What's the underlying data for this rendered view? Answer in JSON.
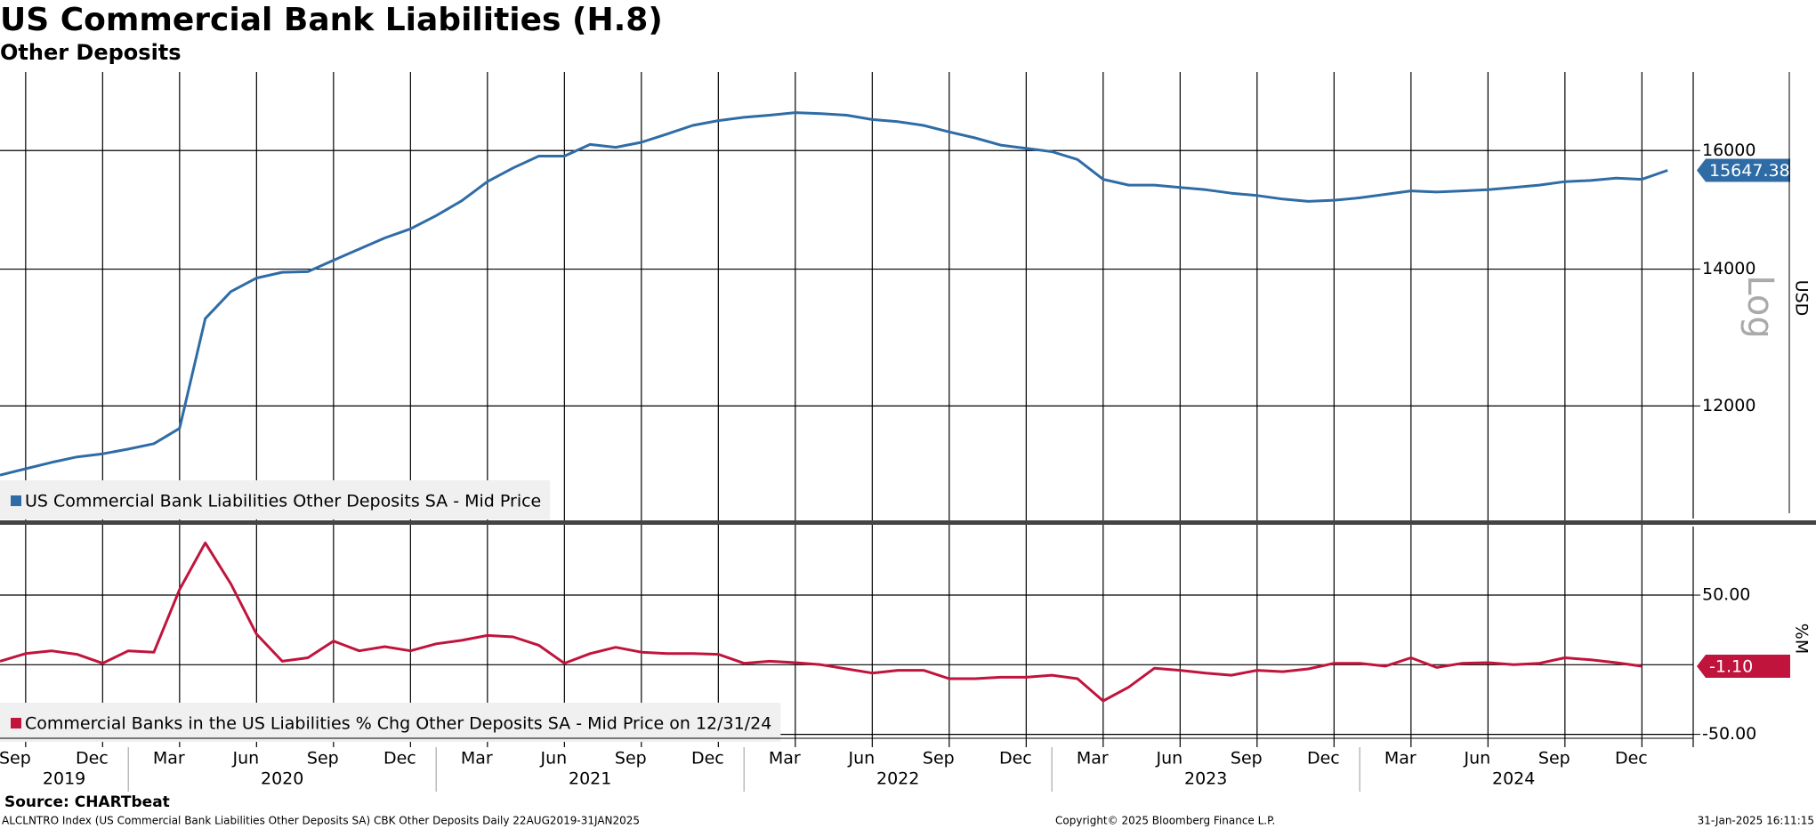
{
  "title": "US Commercial Bank Liabilities (H.8)",
  "subtitle": "Other Deposits",
  "footer": {
    "source": "Source: CHARTbeat",
    "description": "ALCLNTRO Index (US Commercial Bank Liabilities Other Deposits SA) CBK Other Deposits  Daily 22AUG2019-31JAN2025",
    "copyright": "Copyright© 2025 Bloomberg Finance L.P.",
    "timestamp": "31-Jan-2025 16:11:15"
  },
  "chart_data": [
    {
      "type": "line",
      "y_label": "USD",
      "scale_label": "Log",
      "log_scale": true,
      "grid": true,
      "legend": "bottom-left",
      "xlim": [
        "2019-08",
        "2025-02"
      ],
      "ylim": [
        10570,
        17480
      ],
      "yticks": [
        12000,
        14000,
        16000
      ],
      "x": [
        "2019-08",
        "2019-09",
        "2019-10",
        "2019-11",
        "2019-12",
        "2020-01",
        "2020-02",
        "2020-03",
        "2020-04",
        "2020-05",
        "2020-06",
        "2020-07",
        "2020-08",
        "2020-09",
        "2020-10",
        "2020-11",
        "2020-12",
        "2021-01",
        "2021-02",
        "2021-03",
        "2021-04",
        "2021-05",
        "2021-06",
        "2021-07",
        "2021-08",
        "2021-09",
        "2021-10",
        "2021-11",
        "2021-12",
        "2022-01",
        "2022-02",
        "2022-03",
        "2022-04",
        "2022-05",
        "2022-06",
        "2022-07",
        "2022-08",
        "2022-09",
        "2022-10",
        "2022-11",
        "2022-12",
        "2023-01",
        "2023-02",
        "2023-03",
        "2023-04",
        "2023-05",
        "2023-06",
        "2023-07",
        "2023-08",
        "2023-09",
        "2023-10",
        "2023-11",
        "2023-12",
        "2024-01",
        "2024-02",
        "2024-03",
        "2024-04",
        "2024-05",
        "2024-06",
        "2024-07",
        "2024-08",
        "2024-09",
        "2024-10",
        "2024-11",
        "2024-12",
        "2025-01"
      ],
      "series": [
        {
          "name": "US Commercial Bank Liabilities Other Deposits SA - Mid Price",
          "color": "#2f6ca6",
          "values": [
            11100,
            11180,
            11260,
            11330,
            11370,
            11430,
            11500,
            11700,
            13240,
            13650,
            13860,
            13950,
            13960,
            14140,
            14320,
            14500,
            14650,
            14870,
            15120,
            15450,
            15690,
            15900,
            15900,
            16110,
            16060,
            16150,
            16300,
            16460,
            16550,
            16610,
            16650,
            16700,
            16680,
            16650,
            16570,
            16530,
            16460,
            16340,
            16230,
            16100,
            16040,
            15980,
            15840,
            15490,
            15390,
            15390,
            15350,
            15310,
            15250,
            15210,
            15150,
            15110,
            15130,
            15170,
            15230,
            15290,
            15270,
            15290,
            15310,
            15350,
            15390,
            15450,
            15470,
            15510,
            15490,
            15647.38
          ]
        }
      ]
    },
    {
      "type": "line",
      "y_label": "%M",
      "grid": true,
      "legend": "bottom-left",
      "xlim": [
        "2019-08",
        "2025-02"
      ],
      "ylim": [
        -59.2,
        99.2
      ],
      "yticks": [
        {
          "value": -50,
          "label": "-50.00"
        },
        {
          "value": 50,
          "label": "50.00"
        }
      ],
      "xticks": [
        {
          "value": "2019-09",
          "label": "Sep"
        },
        {
          "value": "2019-12",
          "label": "Dec"
        },
        {
          "value": "2020-03",
          "label": "Mar"
        },
        {
          "value": "2020-06",
          "label": "Jun"
        },
        {
          "value": "2020-09",
          "label": "Sep"
        },
        {
          "value": "2020-12",
          "label": "Dec"
        },
        {
          "value": "2021-03",
          "label": "Mar"
        },
        {
          "value": "2021-06",
          "label": "Jun"
        },
        {
          "value": "2021-09",
          "label": "Sep"
        },
        {
          "value": "2021-12",
          "label": "Dec"
        },
        {
          "value": "2022-03",
          "label": "Mar"
        },
        {
          "value": "2022-06",
          "label": "Jun"
        },
        {
          "value": "2022-09",
          "label": "Sep"
        },
        {
          "value": "2022-12",
          "label": "Dec"
        },
        {
          "value": "2023-03",
          "label": "Mar"
        },
        {
          "value": "2023-06",
          "label": "Jun"
        },
        {
          "value": "2023-09",
          "label": "Sep"
        },
        {
          "value": "2023-12",
          "label": "Dec"
        },
        {
          "value": "2024-03",
          "label": "Mar"
        },
        {
          "value": "2024-06",
          "label": "Jun"
        },
        {
          "value": "2024-09",
          "label": "Sep"
        },
        {
          "value": "2024-12",
          "label": "Dec"
        }
      ],
      "years": [
        "2019",
        "2020",
        "2021",
        "2022",
        "2023",
        "2024"
      ],
      "x": [
        "2019-08",
        "2019-09",
        "2019-10",
        "2019-11",
        "2019-12",
        "2020-01",
        "2020-02",
        "2020-03",
        "2020-04",
        "2020-05",
        "2020-06",
        "2020-07",
        "2020-08",
        "2020-09",
        "2020-10",
        "2020-11",
        "2020-12",
        "2021-01",
        "2021-02",
        "2021-03",
        "2021-04",
        "2021-05",
        "2021-06",
        "2021-07",
        "2021-08",
        "2021-09",
        "2021-10",
        "2021-11",
        "2021-12",
        "2022-01",
        "2022-02",
        "2022-03",
        "2022-04",
        "2022-05",
        "2022-06",
        "2022-07",
        "2022-08",
        "2022-09",
        "2022-10",
        "2022-11",
        "2022-12",
        "2023-01",
        "2023-02",
        "2023-03",
        "2023-04",
        "2023-05",
        "2023-06",
        "2023-07",
        "2023-08",
        "2023-09",
        "2023-10",
        "2023-11",
        "2023-12",
        "2024-01",
        "2024-02",
        "2024-03",
        "2024-04",
        "2024-05",
        "2024-06",
        "2024-07",
        "2024-08",
        "2024-09",
        "2024-10",
        "2024-11",
        "2024-12"
      ],
      "series": [
        {
          "name": "Commercial Banks in the US Liabilities % Chg Other Deposits SA - Mid Price on 12/31/24",
          "color": "#c0143c",
          "last_value_label": "-1.10",
          "values": [
            2.5,
            8,
            10,
            7.5,
            1,
            10,
            9,
            54,
            87.5,
            58,
            22,
            2.5,
            5,
            17,
            10,
            13,
            10,
            15,
            17.5,
            21,
            20,
            14,
            1,
            8,
            12.5,
            9,
            8,
            8,
            7.5,
            1,
            2.5,
            1.5,
            0,
            -3,
            -6,
            -4,
            -4,
            -10,
            -10,
            -9,
            -9,
            -7.5,
            -10,
            -26,
            -16,
            -2.5,
            -4,
            -6,
            -7.5,
            -4,
            -5,
            -3,
            1,
            1,
            -1,
            5,
            -2,
            1,
            1.5,
            0,
            1,
            5,
            3.5,
            1.5,
            -1.1
          ]
        }
      ]
    }
  ]
}
